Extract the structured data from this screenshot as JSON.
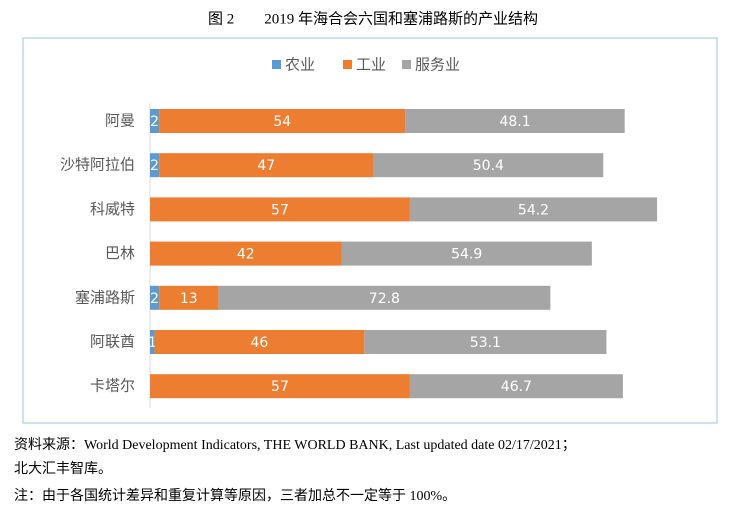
{
  "chart_data": {
    "type": "stacked-bar-horizontal",
    "title": "图 2　　2019 年海合会六国和塞浦路斯的产业结构",
    "categories": [
      "阿曼",
      "沙特阿拉伯",
      "科威特",
      "巴林",
      "塞浦路斯",
      "阿联酋",
      "卡塔尔"
    ],
    "series": [
      {
        "name": "农业",
        "color": "#5b9bd5",
        "values": [
          2,
          2,
          0,
          0,
          2,
          1,
          0
        ]
      },
      {
        "name": "工业",
        "color": "#ed7d31",
        "values": [
          54,
          47,
          57,
          42,
          13,
          46,
          57
        ]
      },
      {
        "name": "服务业",
        "color": "#a5a5a5",
        "values": [
          48.1,
          50.4,
          54.2,
          54.9,
          72.8,
          53.1,
          46.7
        ]
      }
    ],
    "legend": "top",
    "notes": [
      "资料来源：World Development Indicators, THE WORLD BANK, Last updated date 02/17/2021；",
      "北大汇丰智库。",
      "注：由于各国统计差异和重复计算等原因，三者加总不一定等于 100%。"
    ]
  }
}
